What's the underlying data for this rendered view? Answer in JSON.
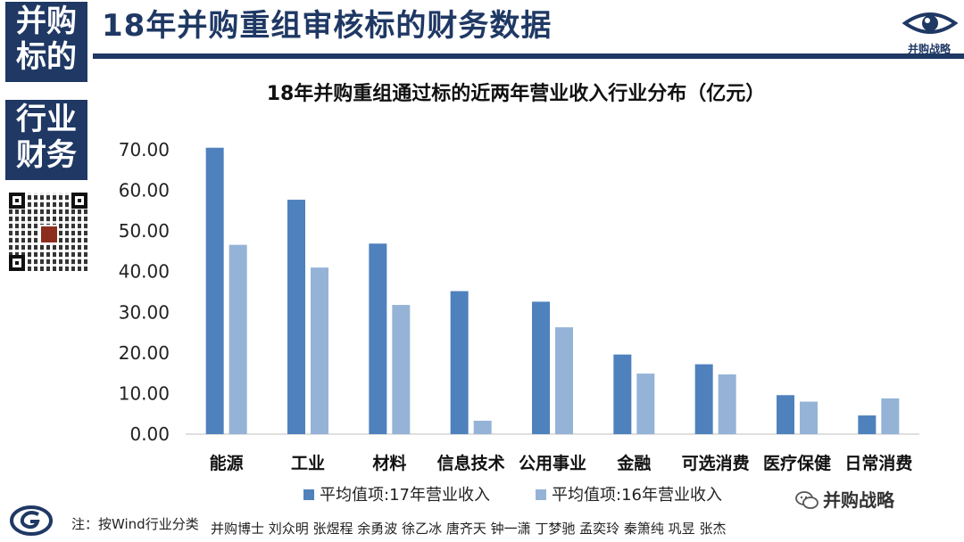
{
  "page": {
    "title": "18年并购重组审核标的财务数据",
    "side_block_1": [
      "并购",
      "标的"
    ],
    "side_block_2": [
      "行业",
      "财务"
    ],
    "brand_logo_text": "并购战略",
    "footer_note": "注：按Wind行业分类",
    "footer_authors": "并购博士 刘众明 张煜程 余勇波 徐乙冰 唐齐天 钟一潇 丁梦驰 孟奕玲 秦箫纯 巩昱 张杰",
    "wechat_label": "并购战略",
    "colors": {
      "navy": "#1f3864",
      "series_17": "#4f81bd",
      "series_16": "#95b3d7"
    }
  },
  "chart_data": {
    "type": "bar",
    "title": "18年并购重组通过标的近两年营业收入行业分布（亿元）",
    "categories": [
      "能源",
      "工业",
      "材料",
      "信息技术",
      "公用事业",
      "金融",
      "可选消费",
      "医疗保健",
      "日常消费"
    ],
    "series": [
      {
        "name": "平均值项:17年营业收入",
        "values": [
          70.5,
          57.7,
          46.9,
          35.2,
          32.6,
          19.6,
          17.2,
          9.6,
          4.6
        ],
        "color": "#4f81bd"
      },
      {
        "name": "平均值项:16年营业收入",
        "values": [
          46.6,
          41.0,
          31.8,
          3.3,
          26.3,
          14.9,
          14.7,
          8.0,
          8.8
        ],
        "color": "#95b3d7"
      }
    ],
    "ylim": [
      0,
      70
    ],
    "yticks": [
      "0.00",
      "10.00",
      "20.00",
      "30.00",
      "40.00",
      "50.00",
      "60.00",
      "70.00"
    ],
    "grid": false,
    "legend_position": "bottom"
  }
}
